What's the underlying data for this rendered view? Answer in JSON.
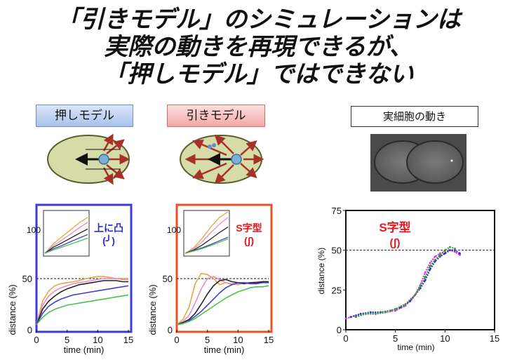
{
  "title": {
    "line1": "「引きモデル」のシミュレーションは",
    "line2": "実際の動きを再現できるが、",
    "line3": "「押しモデル」ではできない"
  },
  "labels": {
    "push": "押しモデル",
    "pull": "引きモデル",
    "real": "実細胞の動き"
  },
  "colors": {
    "push_frame": "#3b3bdc",
    "pull_frame": "#e8502a",
    "annotation_red": "#e8141c",
    "annotation_blue": "#2b2bd6",
    "cell_fill": "#d6dca8",
    "arrow_red": "#a8302a"
  },
  "annotations": {
    "push_shape": "上に凸",
    "push_symbol": "(╯)",
    "pull_shape": "S字型",
    "pull_symbol": "(ʃ)",
    "real_shape": "S字型",
    "real_symbol": "(ʃ)"
  },
  "chart_data": [
    {
      "type": "line",
      "name": "push-model",
      "xlabel": "time (min)",
      "ylabel": "distance (%)",
      "xlim": [
        0,
        15
      ],
      "ylim": [
        0,
        120
      ],
      "xticks": [
        "0",
        "5",
        "10",
        "15"
      ],
      "yticks": [
        "0",
        "50"
      ],
      "reference_line": 50,
      "series": [
        {
          "color": "#e7a83a",
          "x": [
            0,
            1,
            2,
            3,
            4,
            5,
            6,
            7,
            8,
            9,
            10,
            11,
            12,
            13,
            14,
            15
          ],
          "values": [
            5,
            28,
            38,
            43,
            45,
            46,
            47,
            48,
            50,
            51,
            52,
            52,
            51,
            50,
            50,
            50
          ]
        },
        {
          "color": "#e98bc8",
          "x": [
            0,
            1,
            2,
            3,
            4,
            5,
            6,
            7,
            8,
            9,
            10,
            11,
            12,
            13,
            14,
            15
          ],
          "values": [
            5,
            24,
            33,
            38,
            41,
            43,
            45,
            46,
            47,
            48,
            49,
            50,
            50,
            50,
            49,
            49
          ]
        },
        {
          "color": "#222222",
          "x": [
            0,
            1,
            2,
            3,
            4,
            5,
            6,
            7,
            8,
            9,
            10,
            11,
            12,
            13,
            14,
            15
          ],
          "values": [
            5,
            20,
            28,
            33,
            37,
            40,
            42,
            44,
            45,
            46,
            47,
            48,
            48,
            48,
            47,
            47
          ]
        },
        {
          "color": "#4040c8",
          "x": [
            0,
            1,
            2,
            3,
            4,
            5,
            6,
            7,
            8,
            9,
            10,
            11,
            12,
            13,
            14,
            15
          ],
          "values": [
            5,
            16,
            23,
            27,
            30,
            32,
            34,
            35,
            36,
            37,
            38,
            39,
            40,
            41,
            42,
            43
          ]
        },
        {
          "color": "#4cc24c",
          "x": [
            0,
            1,
            2,
            3,
            4,
            5,
            6,
            7,
            8,
            9,
            10,
            11,
            12,
            13,
            14,
            15
          ],
          "values": [
            5,
            12,
            17,
            20,
            22,
            24,
            25,
            26,
            27,
            28,
            29,
            30,
            31,
            32,
            33,
            34
          ]
        }
      ],
      "inset": {
        "ytick": "100",
        "series": [
          {
            "color": "#e7a83a",
            "values": [
              0,
              35,
              60,
              85,
              110,
              130
            ]
          },
          {
            "color": "#e98bc8",
            "values": [
              0,
              28,
              48,
              70,
              92,
              112
            ]
          },
          {
            "color": "#222222",
            "values": [
              0,
              22,
              38,
              55,
              72,
              88
            ]
          },
          {
            "color": "#4040c8",
            "values": [
              0,
              16,
              28,
              42,
              55,
              68
            ]
          },
          {
            "color": "#4cc24c",
            "values": [
              0,
              12,
              22,
              33,
              44,
              55
            ]
          }
        ]
      }
    },
    {
      "type": "line",
      "name": "pull-model",
      "xlabel": "time (min)",
      "ylabel": "distance (%)",
      "xlim": [
        0,
        15
      ],
      "ylim": [
        0,
        120
      ],
      "xticks": [
        "0",
        "5",
        "10",
        "15"
      ],
      "yticks": [
        "0",
        "50"
      ],
      "reference_line": 50,
      "series": [
        {
          "color": "#e7a83a",
          "x": [
            0,
            1,
            2,
            3,
            4,
            5,
            6,
            7,
            8,
            9,
            10,
            11,
            12,
            13,
            14,
            15
          ],
          "values": [
            5,
            10,
            22,
            45,
            55,
            54,
            50,
            44,
            46,
            45,
            44,
            46,
            45,
            46,
            47,
            47
          ]
        },
        {
          "color": "#e98bc8",
          "x": [
            0,
            1,
            2,
            3,
            4,
            5,
            6,
            7,
            8,
            9,
            10,
            11,
            12,
            13,
            14,
            15
          ],
          "values": [
            5,
            8,
            14,
            26,
            40,
            50,
            52,
            49,
            46,
            44,
            45,
            46,
            46,
            47,
            47,
            47
          ]
        },
        {
          "color": "#222222",
          "x": [
            0,
            1,
            2,
            3,
            4,
            5,
            6,
            7,
            8,
            9,
            10,
            11,
            12,
            13,
            14,
            15
          ],
          "values": [
            5,
            7,
            10,
            16,
            25,
            35,
            43,
            48,
            49,
            47,
            46,
            45,
            46,
            46,
            47,
            47
          ]
        },
        {
          "color": "#4040c8",
          "x": [
            0,
            1,
            2,
            3,
            4,
            5,
            6,
            7,
            8,
            9,
            10,
            11,
            12,
            13,
            14,
            15
          ],
          "values": [
            5,
            6,
            9,
            13,
            18,
            24,
            30,
            36,
            41,
            44,
            46,
            46,
            45,
            45,
            46,
            46
          ]
        },
        {
          "color": "#4cc24c",
          "x": [
            0,
            1,
            2,
            3,
            4,
            5,
            6,
            7,
            8,
            9,
            10,
            11,
            12,
            13,
            14,
            15
          ],
          "values": [
            5,
            6,
            8,
            11,
            15,
            19,
            23,
            27,
            31,
            34,
            37,
            39,
            41,
            42,
            42,
            43
          ]
        }
      ],
      "inset": {
        "ytick": "100",
        "series": [
          {
            "color": "#e7a83a",
            "values": [
              0,
              20,
              55,
              95,
              130,
              150
            ]
          },
          {
            "color": "#e98bc8",
            "values": [
              0,
              16,
              42,
              75,
              105,
              130
            ]
          },
          {
            "color": "#222222",
            "values": [
              0,
              12,
              30,
              52,
              75,
              95
            ]
          },
          {
            "color": "#4040c8",
            "values": [
              0,
              10,
              20,
              32,
              45,
              58
            ]
          },
          {
            "color": "#4cc24c",
            "values": [
              0,
              8,
              17,
              28,
              40,
              52
            ]
          }
        ]
      }
    },
    {
      "type": "scatter",
      "name": "real-cell",
      "xlabel": "time (min)",
      "ylabel": "distance (%)",
      "xlim": [
        0,
        15
      ],
      "ylim": [
        0,
        75
      ],
      "xticks": [
        "0",
        "5",
        "10",
        "15"
      ],
      "yticks": [
        "0",
        "25",
        "50",
        "75"
      ],
      "reference_line": 50,
      "series": [
        {
          "color": "#e030e0",
          "x": [
            0,
            1,
            2,
            3,
            4,
            5,
            6,
            7,
            7.5,
            8,
            8.5,
            9,
            9.5,
            10,
            10.5,
            11,
            11.5
          ],
          "values": [
            7,
            9,
            10,
            10,
            11,
            12,
            15,
            22,
            28,
            36,
            42,
            46,
            48,
            49,
            50,
            49,
            47
          ]
        },
        {
          "color": "#2a2acc",
          "x": [
            0.5,
            1.5,
            2.5,
            3.5,
            4.5,
            5.5,
            6.5,
            7.5,
            8,
            8.5,
            9,
            9.5,
            10,
            10.5,
            11,
            11.5
          ],
          "values": [
            8,
            10,
            11,
            11,
            12,
            14,
            18,
            26,
            31,
            38,
            43,
            46,
            48,
            50,
            50,
            48
          ]
        },
        {
          "color": "#2aa02a",
          "x": [
            1,
            2,
            3,
            4,
            5,
            6,
            7,
            7.5,
            8,
            8.5,
            9,
            9.5,
            10,
            10.5,
            11
          ],
          "values": [
            8,
            10,
            10,
            11,
            13,
            16,
            22,
            27,
            33,
            40,
            44,
            47,
            50,
            52,
            51
          ]
        }
      ]
    }
  ]
}
